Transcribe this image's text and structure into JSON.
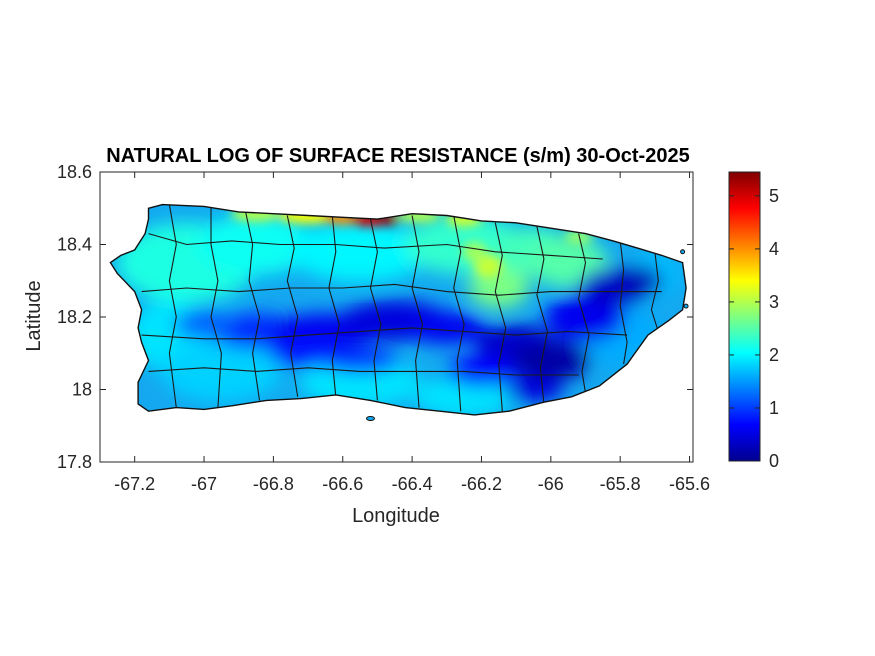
{
  "chart_data": {
    "type": "heatmap",
    "title": "NATURAL LOG OF SURFACE RESISTANCE (s/m) 30-Oct-2025",
    "xlabel": "Longitude",
    "ylabel": "Latitude",
    "xlim": [
      -67.3,
      -65.59
    ],
    "ylim": [
      17.8,
      18.6
    ],
    "xticks": [
      -67.2,
      -67,
      -66.8,
      -66.6,
      -66.4,
      -66.2,
      -66,
      -65.8,
      -65.6
    ],
    "xtick_labels": [
      "-67.2",
      "-67",
      "-66.8",
      "-66.6",
      "-66.4",
      "-66.2",
      "-66",
      "-65.8",
      "-65.6"
    ],
    "yticks": [
      17.8,
      18,
      18.2,
      18.4,
      18.6
    ],
    "ytick_labels": [
      "17.8",
      "18",
      "18.2",
      "18.4",
      "18.6"
    ],
    "colorbar": {
      "colormap": "jet",
      "range": [
        0,
        5.45
      ],
      "ticks": [
        0,
        1,
        2,
        3,
        4,
        5
      ],
      "tick_labels": [
        "0",
        "1",
        "2",
        "3",
        "4",
        "5"
      ]
    },
    "grid": false,
    "region": "Puerto Rico",
    "field_summary": {
      "typical": 2.0,
      "north_coast_max": 5.2,
      "central_cordillera_min": 0.3,
      "southeast_min": 0.1
    }
  }
}
